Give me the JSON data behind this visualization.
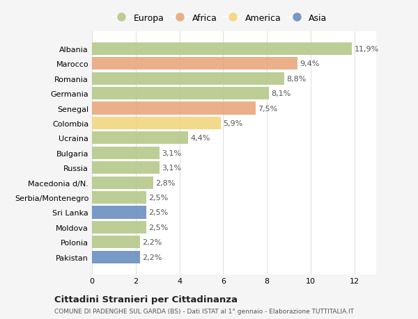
{
  "countries": [
    "Pakistan",
    "Polonia",
    "Moldova",
    "Sri Lanka",
    "Serbia/Montenegro",
    "Macedonia d/N.",
    "Russia",
    "Bulgaria",
    "Ucraina",
    "Colombia",
    "Senegal",
    "Germania",
    "Romania",
    "Marocco",
    "Albania"
  ],
  "values": [
    2.2,
    2.2,
    2.5,
    2.5,
    2.5,
    2.8,
    3.1,
    3.1,
    4.4,
    5.9,
    7.5,
    8.1,
    8.8,
    9.4,
    11.9
  ],
  "labels": [
    "2,2%",
    "2,2%",
    "2,5%",
    "2,5%",
    "2,5%",
    "2,8%",
    "3,1%",
    "3,1%",
    "4,4%",
    "5,9%",
    "7,5%",
    "8,1%",
    "8,8%",
    "9,4%",
    "11,9%"
  ],
  "categories": [
    "Europa",
    "Africa",
    "America",
    "Asia"
  ],
  "continent": [
    "Asia",
    "Europa",
    "Europa",
    "Asia",
    "Europa",
    "Europa",
    "Europa",
    "Europa",
    "Europa",
    "America",
    "Africa",
    "Europa",
    "Europa",
    "Africa",
    "Europa"
  ],
  "colors": {
    "Europa": "#b5c98a",
    "Africa": "#e8a87c",
    "America": "#f2d57e",
    "Asia": "#6b8ec0"
  },
  "xlim": [
    0,
    13
  ],
  "xticks": [
    0,
    2,
    4,
    6,
    8,
    10,
    12
  ],
  "title1": "Cittadini Stranieri per Cittadinanza",
  "title2": "COMUNE DI PADENGHE SUL GARDA (BS) - Dati ISTAT al 1° gennaio - Elaborazione TUTTITALIA.IT",
  "background_color": "#f5f5f5",
  "bar_background": "#ffffff",
  "bar_height": 0.85,
  "label_fontsize": 8,
  "tick_fontsize": 8
}
